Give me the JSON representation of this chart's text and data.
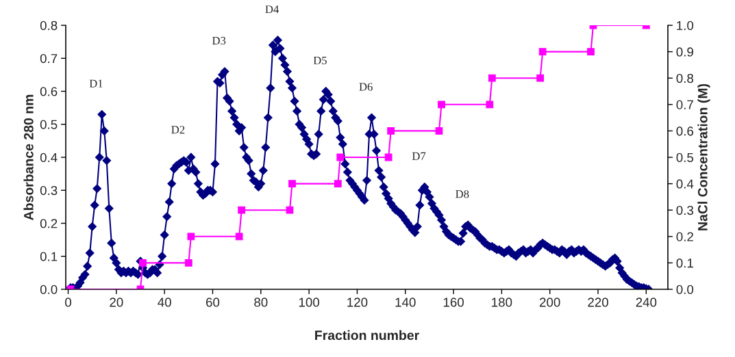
{
  "chart_data": {
    "type": "line",
    "xlabel": "Fraction number",
    "ylabel": "Absorbance 280 nm",
    "y2label": "NaCl Concentration (M)",
    "xlim": [
      -1,
      249
    ],
    "xticks": [
      0,
      20,
      40,
      60,
      80,
      100,
      120,
      140,
      160,
      180,
      200,
      220,
      240
    ],
    "ylim": [
      0,
      0.8
    ],
    "yticks": [
      {
        "value": 0,
        "label": "0.0"
      },
      0.1,
      0.2,
      0.3,
      0.4,
      0.5,
      0.6,
      0.7,
      0.8
    ],
    "y2lim": [
      0,
      1.0
    ],
    "y2ticks": [
      {
        "value": 0,
        "label": "0.0"
      },
      0.1,
      0.2,
      0.3,
      0.4,
      0.5,
      0.6,
      0.7,
      0.8,
      0.9,
      {
        "value": 1.0,
        "label": "1.0"
      }
    ],
    "grid": false,
    "legend": false,
    "series": [
      {
        "color": "#000080",
        "marker": "diamond",
        "line_style": "solid",
        "x": [
          1,
          2,
          3,
          4,
          5,
          6,
          7,
          8,
          9,
          10,
          11,
          12,
          13,
          14,
          15,
          16,
          17,
          18,
          19,
          20,
          21,
          22,
          23,
          24,
          25,
          26,
          27,
          28,
          29,
          30,
          31,
          32,
          33,
          34,
          35,
          36,
          37,
          38,
          39,
          40,
          41,
          42,
          43,
          44,
          45,
          46,
          47,
          48,
          49,
          50,
          51,
          52,
          53,
          54,
          55,
          56,
          57,
          58,
          59,
          60,
          61,
          62,
          63,
          64,
          65,
          66,
          67,
          68,
          69,
          70,
          71,
          72,
          73,
          74,
          75,
          76,
          77,
          78,
          79,
          80,
          81,
          82,
          83,
          84,
          85,
          86,
          87,
          88,
          89,
          90,
          91,
          92,
          93,
          94,
          95,
          96,
          97,
          98,
          99,
          100,
          101,
          102,
          103,
          104,
          105,
          106,
          107,
          108,
          109,
          110,
          111,
          112,
          113,
          114,
          115,
          116,
          117,
          118,
          119,
          120,
          121,
          122,
          123,
          124,
          125,
          126,
          127,
          128,
          129,
          130,
          131,
          132,
          133,
          134,
          135,
          136,
          137,
          138,
          139,
          140,
          141,
          142,
          143,
          144,
          145,
          146,
          147,
          148,
          149,
          150,
          151,
          152,
          153,
          154,
          155,
          156,
          157,
          158,
          159,
          160,
          161,
          162,
          163,
          164,
          165,
          166,
          167,
          168,
          169,
          170,
          171,
          172,
          173,
          174,
          175,
          176,
          177,
          178,
          179,
          180,
          181,
          182,
          183,
          184,
          185,
          186,
          187,
          188,
          189,
          190,
          191,
          192,
          193,
          194,
          195,
          196,
          197,
          198,
          199,
          200,
          201,
          202,
          203,
          204,
          205,
          206,
          207,
          208,
          209,
          210,
          211,
          212,
          213,
          214,
          215,
          216,
          217,
          218,
          219,
          220,
          221,
          222,
          223,
          224,
          225,
          226,
          227,
          228,
          229,
          230,
          231,
          232,
          233,
          234,
          235,
          236,
          237,
          238,
          239,
          240,
          241
        ],
        "values": [
          0.005,
          0.005,
          0.0,
          0.01,
          0.02,
          0.035,
          0.045,
          0.07,
          0.11,
          0.19,
          0.255,
          0.305,
          0.4,
          0.53,
          0.48,
          0.39,
          0.245,
          0.14,
          0.095,
          0.08,
          0.06,
          0.05,
          0.055,
          0.05,
          0.055,
          0.05,
          0.055,
          0.05,
          0.045,
          0.085,
          0.065,
          0.05,
          0.045,
          0.05,
          0.06,
          0.06,
          0.05,
          0.075,
          0.1,
          0.165,
          0.22,
          0.265,
          0.32,
          0.365,
          0.375,
          0.38,
          0.385,
          0.39,
          0.385,
          0.36,
          0.4,
          0.365,
          0.355,
          0.32,
          0.295,
          0.285,
          0.29,
          0.3,
          0.3,
          0.295,
          0.38,
          0.63,
          0.625,
          0.65,
          0.66,
          0.58,
          0.57,
          0.54,
          0.52,
          0.5,
          0.48,
          0.49,
          0.43,
          0.4,
          0.39,
          0.35,
          0.33,
          0.325,
          0.31,
          0.32,
          0.36,
          0.43,
          0.52,
          0.61,
          0.74,
          0.72,
          0.755,
          0.73,
          0.7,
          0.68,
          0.66,
          0.63,
          0.61,
          0.57,
          0.54,
          0.5,
          0.49,
          0.47,
          0.455,
          0.44,
          0.41,
          0.405,
          0.41,
          0.47,
          0.54,
          0.575,
          0.6,
          0.59,
          0.57,
          0.54,
          0.52,
          0.51,
          0.46,
          0.44,
          0.38,
          0.355,
          0.33,
          0.32,
          0.31,
          0.3,
          0.29,
          0.28,
          0.27,
          0.33,
          0.47,
          0.52,
          0.47,
          0.42,
          0.36,
          0.34,
          0.31,
          0.29,
          0.275,
          0.26,
          0.25,
          0.24,
          0.235,
          0.23,
          0.22,
          0.21,
          0.2,
          0.19,
          0.18,
          0.172,
          0.19,
          0.255,
          0.3,
          0.31,
          0.295,
          0.28,
          0.26,
          0.245,
          0.235,
          0.225,
          0.21,
          0.19,
          0.175,
          0.165,
          0.16,
          0.155,
          0.15,
          0.145,
          0.145,
          0.17,
          0.19,
          0.195,
          0.185,
          0.18,
          0.175,
          0.165,
          0.155,
          0.15,
          0.14,
          0.135,
          0.13,
          0.13,
          0.125,
          0.12,
          0.12,
          0.115,
          0.11,
          0.115,
          0.12,
          0.11,
          0.105,
          0.1,
          0.11,
          0.115,
          0.12,
          0.11,
          0.115,
          0.12,
          0.11,
          0.12,
          0.125,
          0.135,
          0.14,
          0.135,
          0.13,
          0.125,
          0.12,
          0.12,
          0.115,
          0.11,
          0.12,
          0.115,
          0.105,
          0.115,
          0.12,
          0.11,
          0.115,
          0.12,
          0.115,
          0.12,
          0.11,
          0.105,
          0.1,
          0.095,
          0.09,
          0.085,
          0.08,
          0.075,
          0.07,
          0.075,
          0.08,
          0.09,
          0.095,
          0.085,
          0.065,
          0.05,
          0.04,
          0.03,
          0.025,
          0.02,
          0.015,
          0.01,
          0.008,
          0.005,
          0.005,
          0.002,
          0.0
        ]
      },
      {
        "color": "#ff00ff",
        "marker": "square",
        "line_style": "solid",
        "axis": "y2",
        "x": [
          1,
          30,
          31,
          50,
          51,
          71,
          72,
          92,
          93,
          112,
          113,
          133,
          134,
          154,
          155,
          175,
          176,
          196,
          197,
          217,
          218,
          240
        ],
        "values": [
          0,
          0,
          0.1,
          0.1,
          0.2,
          0.2,
          0.3,
          0.3,
          0.4,
          0.4,
          0.5,
          0.5,
          0.6,
          0.6,
          0.7,
          0.7,
          0.8,
          0.8,
          0.9,
          0.9,
          1.0,
          1.0
        ]
      }
    ],
    "annotations": [
      {
        "text": "D1",
        "x": 14,
        "y": 0.53
      },
      {
        "text": "D2",
        "x": 48,
        "y": 0.39
      },
      {
        "text": "D3",
        "x": 65,
        "y": 0.66
      },
      {
        "text": "D4",
        "x": 87,
        "y": 0.755
      },
      {
        "text": "D5",
        "x": 107,
        "y": 0.6
      },
      {
        "text": "D6",
        "x": 126,
        "y": 0.52
      },
      {
        "text": "D7",
        "x": 148,
        "y": 0.31
      },
      {
        "text": "D8",
        "x": 166,
        "y": 0.195
      }
    ]
  }
}
